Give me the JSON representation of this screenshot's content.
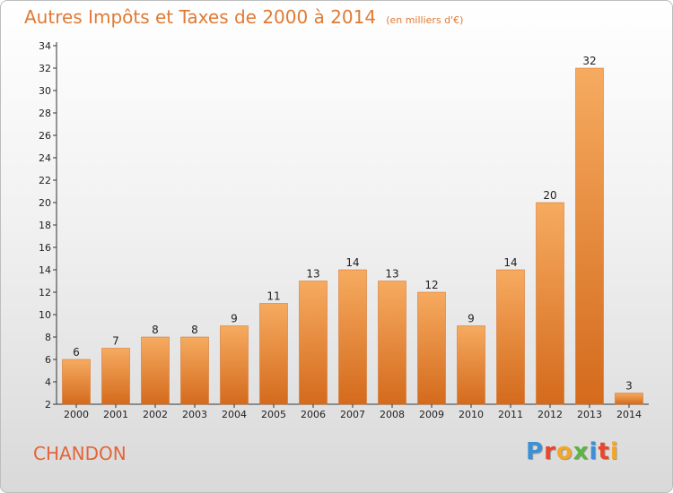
{
  "chart_data": {
    "type": "bar",
    "title": "Autres Impôts et Taxes de 2000 à 2014",
    "subtitle": "(en milliers d'€)",
    "categories": [
      "2000",
      "2001",
      "2002",
      "2003",
      "2004",
      "2005",
      "2006",
      "2007",
      "2008",
      "2009",
      "2010",
      "2011",
      "2012",
      "2013",
      "2014"
    ],
    "values": [
      6,
      7,
      8,
      8,
      9,
      11,
      13,
      14,
      13,
      12,
      9,
      14,
      20,
      32,
      3
    ],
    "ylim": [
      2,
      34
    ],
    "yticks": [
      2,
      4,
      6,
      8,
      10,
      12,
      14,
      16,
      18,
      20,
      22,
      24,
      26,
      28,
      30,
      32,
      34
    ],
    "grid": false,
    "bar_color": "#f0923e",
    "bar_color_light": "#f6ab60",
    "bar_color_dark": "#d46a1c"
  },
  "commune": "CHANDON",
  "logo": {
    "text": "Proxiti",
    "colors": [
      "#3d8fd6",
      "#e8472b",
      "#f2a72a",
      "#5bb545",
      "#3d8fd6",
      "#e8472b",
      "#f2a72a"
    ]
  },
  "colors": {
    "title": "#e07a34",
    "commune": "#e2653a",
    "axis": "#333333"
  }
}
